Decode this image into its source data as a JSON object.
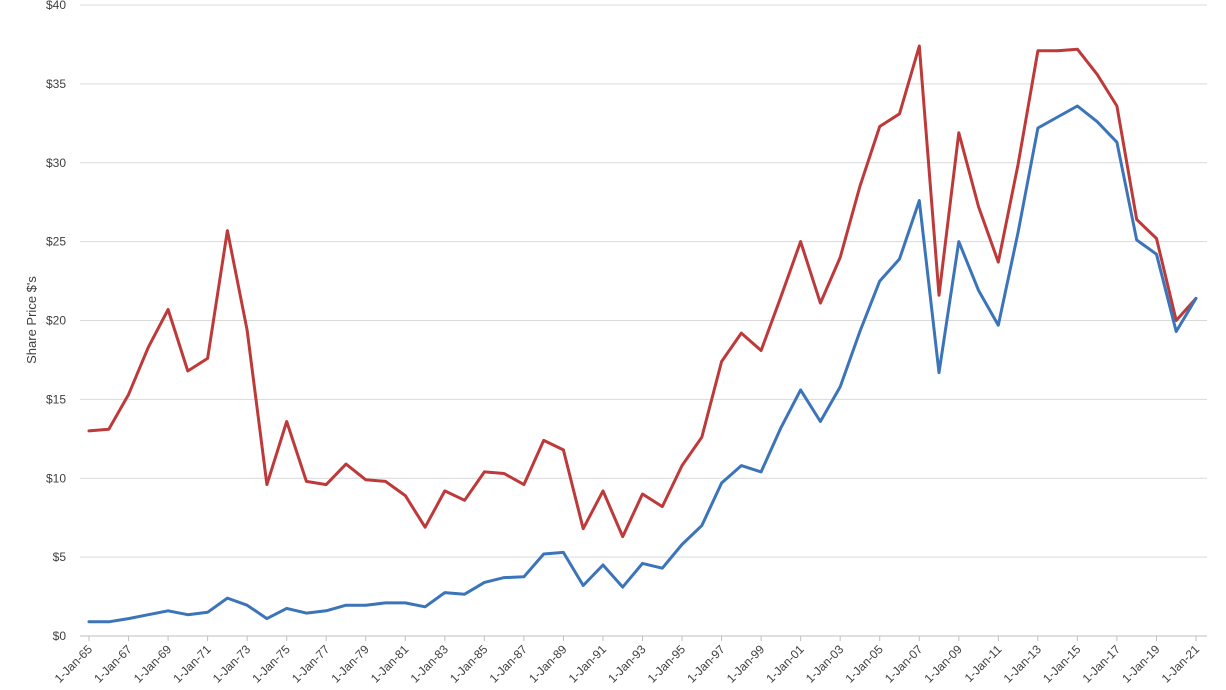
{
  "chart_data": {
    "type": "line",
    "title": "",
    "xlabel": "",
    "ylabel": "Share Price $'s",
    "ylim": [
      0,
      40
    ],
    "yticks": [
      "$0",
      "$5",
      "$10",
      "$15",
      "$20",
      "$25",
      "$30",
      "$35",
      "$40"
    ],
    "xtick_labels": [
      "1-Jan-65",
      "1-Jan-67",
      "1-Jan-69",
      "1-Jan-71",
      "1-Jan-73",
      "1-Jan-75",
      "1-Jan-77",
      "1-Jan-79",
      "1-Jan-81",
      "1-Jan-83",
      "1-Jan-85",
      "1-Jan-87",
      "1-Jan-89",
      "1-Jan-91",
      "1-Jan-93",
      "1-Jan-95",
      "1-Jan-97",
      "1-Jan-99",
      "1-Jan-01",
      "1-Jan-03",
      "1-Jan-05",
      "1-Jan-07",
      "1-Jan-09",
      "1-Jan-11",
      "1-Jan-13",
      "1-Jan-15",
      "1-Jan-17",
      "1-Jan-19",
      "1-Jan-21"
    ],
    "grid": true,
    "legend": "none",
    "x": [
      1965,
      1966,
      1967,
      1968,
      1969,
      1970,
      1971,
      1972,
      1973,
      1974,
      1975,
      1976,
      1977,
      1978,
      1979,
      1980,
      1981,
      1982,
      1983,
      1984,
      1985,
      1986,
      1987,
      1988,
      1989,
      1990,
      1991,
      1992,
      1993,
      1994,
      1995,
      1996,
      1997,
      1998,
      1999,
      2000,
      2001,
      2002,
      2003,
      2004,
      2005,
      2006,
      2007,
      2008,
      2009,
      2010,
      2011,
      2012,
      2013,
      2014,
      2015,
      2016,
      2017,
      2018,
      2019,
      2020,
      2021
    ],
    "series": [
      {
        "color": "#be3a3a",
        "values": [
          13.0,
          13.1,
          15.3,
          18.3,
          20.7,
          16.8,
          17.6,
          25.7,
          19.4,
          9.6,
          13.6,
          9.8,
          9.6,
          10.9,
          9.9,
          9.8,
          8.9,
          6.9,
          9.2,
          8.6,
          10.4,
          10.3,
          9.6,
          12.4,
          11.8,
          6.8,
          9.2,
          6.3,
          9.0,
          8.2,
          10.8,
          12.6,
          17.4,
          19.2,
          18.1,
          21.5,
          25.0,
          21.1,
          24.0,
          28.5,
          32.3,
          33.1,
          37.4,
          21.6,
          31.9,
          27.2,
          23.7,
          29.9,
          37.1,
          37.1,
          37.2,
          35.6,
          33.6,
          26.4,
          25.2,
          20.0,
          21.4
        ]
      },
      {
        "color": "#3b74b9",
        "values": [
          0.9,
          0.9,
          1.1,
          1.35,
          1.6,
          1.35,
          1.5,
          2.4,
          1.95,
          1.1,
          1.75,
          1.45,
          1.6,
          1.95,
          1.95,
          2.1,
          2.1,
          1.85,
          2.75,
          2.65,
          3.4,
          3.7,
          3.75,
          5.2,
          5.3,
          3.2,
          4.5,
          3.1,
          4.6,
          4.3,
          5.8,
          7.0,
          9.7,
          10.8,
          10.4,
          13.2,
          15.6,
          13.6,
          15.8,
          19.3,
          22.5,
          23.9,
          27.6,
          16.7,
          25.0,
          21.9,
          19.7,
          25.6,
          32.2,
          32.9,
          33.6,
          32.6,
          31.3,
          25.1,
          24.2,
          19.3,
          21.4
        ]
      }
    ]
  }
}
